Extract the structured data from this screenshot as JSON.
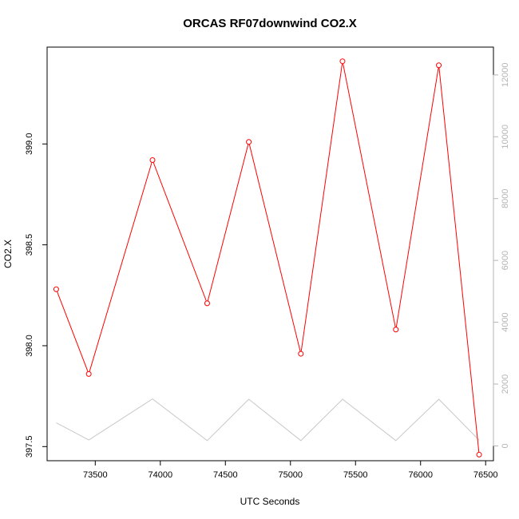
{
  "chart_data": {
    "type": "line",
    "title": "ORCAS RF07downwind CO2.X",
    "xlabel": "UTC Seconds",
    "ylabel": "CO2.X",
    "xlim": [
      73130,
      76560
    ],
    "ylim": [
      397.43,
      399.48
    ],
    "x_ticks": [
      73500,
      74000,
      74500,
      75000,
      75500,
      76000,
      76500
    ],
    "y_ticks": [
      397.5,
      398.0,
      398.5,
      399.0
    ],
    "y_tick_labels": [
      "397.5",
      "398.0",
      "398.5",
      "399.0"
    ],
    "y2lim": [
      -480,
      12900
    ],
    "y2_ticks": [
      0,
      2000,
      4000,
      6000,
      8000,
      10000,
      12000
    ],
    "grid": false,
    "series": [
      {
        "color": "#ff0000",
        "markers": true,
        "x": [
          73200,
          73450,
          73940,
          74360,
          74680,
          75080,
          75400,
          75810,
          76140,
          76450
        ],
        "y": [
          398.28,
          397.86,
          398.92,
          398.21,
          399.01,
          397.96,
          399.41,
          398.08,
          399.39,
          397.46
        ]
      },
      {
        "color": "#c8c8c8",
        "markers": false,
        "axis": "right",
        "x": [
          73200,
          73450,
          73940,
          74360,
          74680,
          75080,
          75400,
          75810,
          76140,
          76450
        ],
        "y": [
          750,
          190,
          1520,
          170,
          1510,
          170,
          1510,
          170,
          1510,
          180
        ]
      }
    ]
  }
}
